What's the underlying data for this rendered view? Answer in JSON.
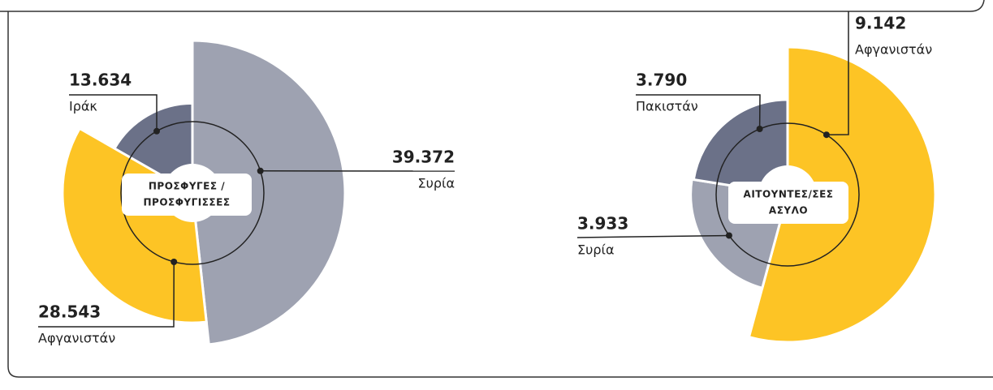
{
  "chart_data": [
    {
      "type": "pie",
      "center_label": [
        "ΠΡΟΣΦΥΓΕΣ /",
        "ΠΡΟΣΦΥΓΙΣΣΕΣ"
      ],
      "categories": [
        "Συρία",
        "Αφγανιστάν",
        "Ιράκ"
      ],
      "values": [
        39372,
        28543,
        13634
      ],
      "value_labels": [
        "39.372",
        "28.543",
        "13.634"
      ],
      "colors": [
        "#9ea2b1",
        "#fdc425",
        "#6b7188"
      ]
    },
    {
      "type": "pie",
      "center_label": [
        "ΑΙΤΟΥΝΤΕΣ/ΣΕΣ",
        "ΑΣΥΛΟ"
      ],
      "categories": [
        "Αφγανιστάν",
        "Συρία",
        "Πακιστάν"
      ],
      "values": [
        9142,
        3933,
        3790
      ],
      "value_labels": [
        "9.142",
        "3.933",
        "3.790"
      ],
      "colors": [
        "#fdc425",
        "#9ea2b1",
        "#6b7188"
      ]
    }
  ]
}
